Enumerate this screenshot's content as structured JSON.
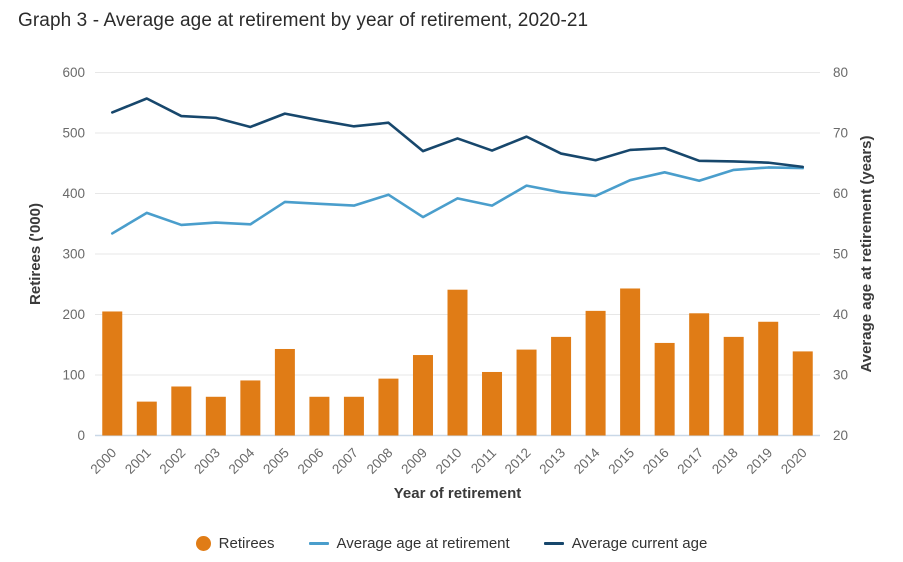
{
  "chart_data": {
    "type": "bar+line combo",
    "title": "Graph 3 - Average age at retirement by year of retirement, 2020-21",
    "categories": [
      "2000",
      "2001",
      "2002",
      "2003",
      "2004",
      "2005",
      "2006",
      "2007",
      "2008",
      "2009",
      "2010",
      "2011",
      "2012",
      "2013",
      "2014",
      "2015",
      "2016",
      "2017",
      "2018",
      "2019",
      "2020"
    ],
    "bar_series": {
      "name": "Retirees",
      "axis": "left",
      "color": "#E07C16",
      "values": [
        205,
        56,
        81,
        64,
        91,
        143,
        64,
        64,
        94,
        133,
        241,
        105,
        142,
        163,
        206,
        243,
        153,
        202,
        163,
        188,
        139
      ]
    },
    "line_series": [
      {
        "name": "Average age at retirement",
        "axis": "right",
        "color": "#4A9ECC",
        "values": [
          53.4,
          56.8,
          54.8,
          55.2,
          54.9,
          58.6,
          58.3,
          58.0,
          59.8,
          56.1,
          59.2,
          58.0,
          61.3,
          60.2,
          59.6,
          62.2,
          63.5,
          62.1,
          63.9,
          64.3,
          64.2
        ]
      },
      {
        "name": "Average current age",
        "axis": "right",
        "color": "#17476C",
        "values": [
          73.4,
          75.7,
          72.8,
          72.5,
          71.0,
          73.2,
          72.1,
          71.1,
          71.7,
          67.0,
          69.1,
          67.1,
          69.4,
          66.6,
          65.5,
          67.2,
          67.5,
          65.4,
          65.3,
          65.1,
          64.4
        ]
      }
    ],
    "left_axis": {
      "label": "Retirees ('000)",
      "min": 0,
      "max": 600,
      "tick_step": 100,
      "tick_labels": [
        "0",
        "100",
        "200",
        "300",
        "400",
        "500",
        "600"
      ]
    },
    "right_axis": {
      "label": "Average age at retirement (years)",
      "min": 20,
      "max": 80,
      "tick_step": 10,
      "tick_labels": [
        "20",
        "30",
        "40",
        "50",
        "60",
        "70",
        "80"
      ]
    },
    "x_axis": {
      "label": "Year of retirement"
    },
    "grid": "horizontal",
    "legend_position": "bottom",
    "colors": {
      "grid_line": "#E7E7E7",
      "axis_line": "#C9D8E7",
      "tick_text": "#6A6A6A",
      "axis_title_text": "#3A3A3A",
      "title_text": "#2B2B2B",
      "background": "#FFFFFF"
    }
  }
}
